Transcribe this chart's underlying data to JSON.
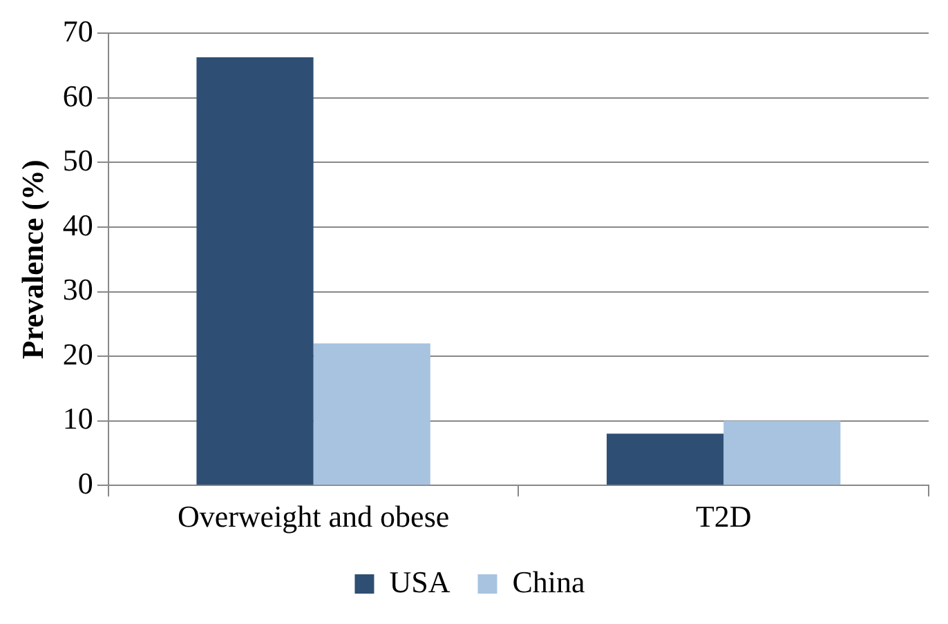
{
  "chart_data": {
    "type": "bar",
    "ylabel": "Prevalence (%)",
    "categories": [
      "Overweight and obese",
      "T2D"
    ],
    "series": [
      {
        "name": "USA",
        "color": "#2e4f73",
        "values": [
          66.3,
          8
        ]
      },
      {
        "name": "China",
        "color": "#a7c3e0",
        "values": [
          22,
          10
        ]
      }
    ],
    "ylim": [
      0,
      70
    ],
    "yticks": [
      0,
      10,
      20,
      30,
      40,
      50,
      60,
      70
    ],
    "grid": "y",
    "legend": "bottom"
  }
}
